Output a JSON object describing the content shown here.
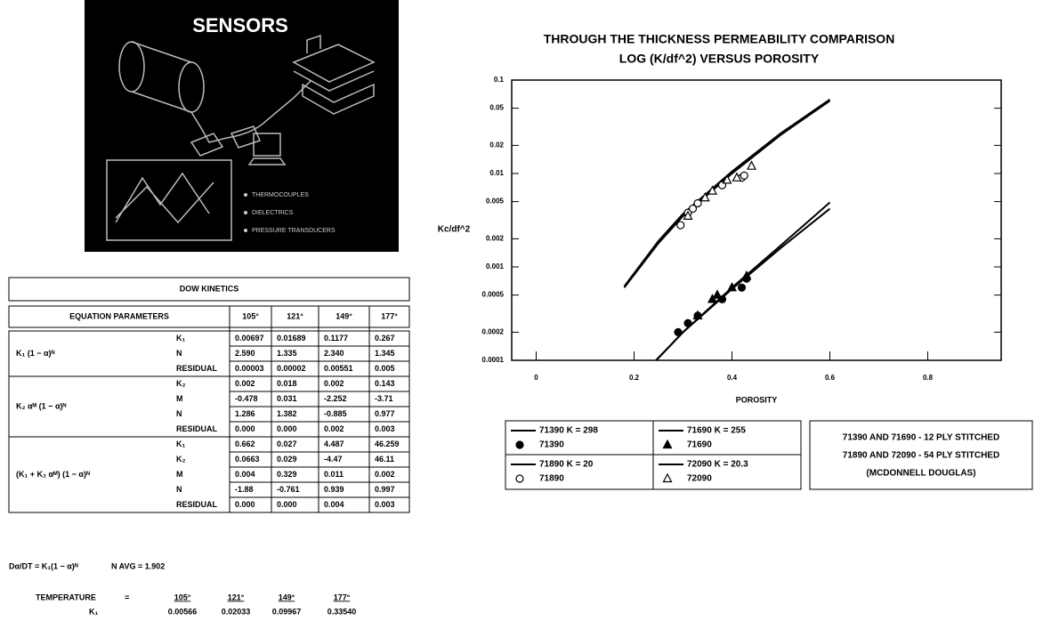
{
  "sensors_panel": {
    "title": "SENSORS",
    "bullets": [
      "THERMOCOUPLES",
      "DIELECTRICS",
      "PRESSURE TRANSDUCERS"
    ]
  },
  "table": {
    "title": "DOW KINETICS",
    "header": [
      "EQUATION PARAMETERS",
      "105°",
      "121°",
      "149°",
      "177°"
    ],
    "groups": [
      {
        "equation": "K₁ (1 − α)ᴺ",
        "rows": [
          [
            "K₁",
            "0.00697",
            "0.01689",
            "0.1177",
            "0.267"
          ],
          [
            "N",
            "2.590",
            "1.335",
            "2.340",
            "1.345"
          ],
          [
            "RESIDUAL",
            "0.00003",
            "0.00002",
            "0.00551",
            "0.005"
          ]
        ]
      },
      {
        "equation": "K₂ αᴹ (1 − α)ᴺ",
        "rows": [
          [
            "K₂",
            "0.002",
            "0.018",
            "0.002",
            "0.143"
          ],
          [
            "M",
            "-0.478",
            "0.031",
            "-2.252",
            "-3.71"
          ],
          [
            "N",
            "1.286",
            "1.382",
            "-0.885",
            "0.977"
          ],
          [
            "RESIDUAL",
            "0.000",
            "0.000",
            "0.002",
            "0.003"
          ]
        ]
      },
      {
        "equation": "(K₁ + K₂ αᴹ) (1 − α)ᴺ",
        "rows": [
          [
            "K₁",
            "0.662",
            "0.027",
            "4.487",
            "46.259"
          ],
          [
            "K₂",
            "0.0663",
            "0.029",
            "-4.47",
            "46.11"
          ],
          [
            "M",
            "0.004",
            "0.329",
            "0.011",
            "0.002"
          ],
          [
            "N",
            "-1.88",
            "-0.761",
            "0.939",
            "0.997"
          ],
          [
            "RESIDUAL",
            "0.000",
            "0.000",
            "0.004",
            "0.003"
          ]
        ]
      }
    ]
  },
  "footer": {
    "rate_equation": "Dα/DT = K₁(1 − α)ᴺ",
    "n_avg": "N AVG = 1.902",
    "temperature_row": [
      "TEMPERATURE",
      "=",
      "105°",
      "121°",
      "149°",
      "177°"
    ],
    "k1_row": [
      "K₁",
      "0.00566",
      "0.02033",
      "0.09967",
      "0.33540"
    ]
  },
  "chart_data": {
    "type": "line",
    "title": [
      "THROUGH THE THICKNESS PERMEABILITY COMPARISON",
      "LOG (K/df^2) VERSUS POROSITY"
    ],
    "x_label": "POROSITY",
    "y_label": "Kc/df^2",
    "xlim": [
      -0.05,
      0.95
    ],
    "xticks": [
      0,
      0.2,
      0.4,
      0.6,
      0.8
    ],
    "ylim": [
      0.0001,
      0.1
    ],
    "yticks": [
      0.1,
      0.05,
      0.02,
      0.01,
      0.005,
      0.002,
      0.001,
      0.0005,
      0.0002,
      0.0001
    ],
    "log_y": true,
    "series": [
      {
        "name": "71390 K = 298",
        "color": "#000",
        "x": [
          0.18,
          0.25,
          0.3,
          0.4,
          0.5,
          0.6
        ],
        "values": [
          0.0006,
          0.0018,
          0.0035,
          0.01,
          0.026,
          0.06
        ]
      },
      {
        "name": "71390",
        "color": "#000",
        "marker": "filled-circle",
        "x": [
          0.29,
          0.31,
          0.33,
          0.38,
          0.42,
          0.43
        ],
        "values": [
          0.0002,
          0.00025,
          0.0003,
          0.00045,
          0.0006,
          0.00075
        ]
      },
      {
        "name": "71690 K = 255",
        "color": "#000",
        "x": [
          0.18,
          0.25,
          0.3,
          0.4,
          0.5,
          0.6
        ],
        "values": [
          0.00062,
          0.0019,
          0.0037,
          0.0105,
          0.027,
          0.062
        ]
      },
      {
        "name": "71690",
        "color": "#000",
        "marker": "filled-triangle",
        "x": [
          0.33,
          0.36,
          0.37,
          0.4,
          0.43
        ],
        "values": [
          0.0003,
          0.00045,
          0.0005,
          0.0006,
          0.0008
        ]
      },
      {
        "name": "71890 K = 20",
        "color": "#000",
        "x": [
          0.245,
          0.3,
          0.4,
          0.5,
          0.6
        ],
        "values": [
          0.0001,
          0.0002,
          0.0006,
          0.0017,
          0.0049
        ]
      },
      {
        "name": "71890",
        "color": "#000",
        "marker": "open-circle",
        "x": [
          0.295,
          0.31,
          0.32,
          0.33,
          0.38,
          0.42,
          0.425
        ],
        "values": [
          0.0028,
          0.0038,
          0.0042,
          0.0048,
          0.0075,
          0.009,
          0.0095
        ]
      },
      {
        "name": "72090 K = 20.3",
        "color": "#000",
        "x": [
          0.245,
          0.3,
          0.4,
          0.5,
          0.6
        ],
        "values": [
          0.0001,
          0.0002,
          0.00058,
          0.0016,
          0.0042
        ]
      },
      {
        "name": "72090",
        "color": "#000",
        "marker": "open-triangle",
        "x": [
          0.31,
          0.345,
          0.36,
          0.39,
          0.41,
          0.44
        ],
        "values": [
          0.0035,
          0.0055,
          0.0065,
          0.0085,
          0.009,
          0.012
        ]
      }
    ],
    "annotations": [
      "71390 AND 71690 - 12 PLY STITCHED",
      "71890 AND 72090 - 54 PLY STITCHED",
      "(MCDONNELL DOUGLAS)"
    ]
  }
}
